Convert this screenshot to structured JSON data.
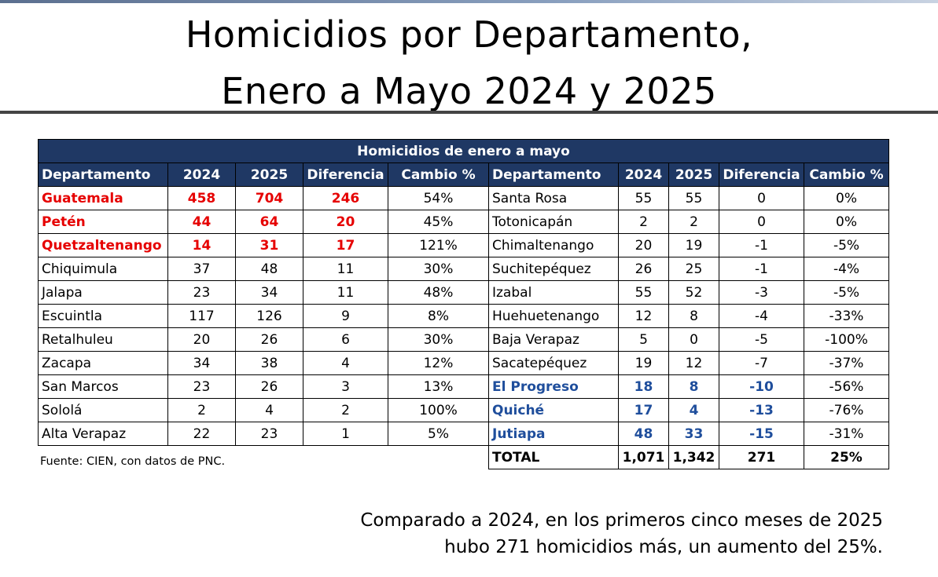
{
  "title": {
    "line1": "Homicidios por Departamento,",
    "line2": "Enero a Mayo 2024 y 2025"
  },
  "table": {
    "caption": "Homicidios de enero a mayo",
    "headers": [
      "Departamento",
      "2024",
      "2025",
      "Diferencia",
      "Cambio %"
    ],
    "left_rows": [
      {
        "dep": "Guatemala",
        "y2024": "458",
        "y2025": "704",
        "dif": "246",
        "cambio": "54%",
        "style": "red"
      },
      {
        "dep": "Petén",
        "y2024": "44",
        "y2025": "64",
        "dif": "20",
        "cambio": "45%",
        "style": "red"
      },
      {
        "dep": "Quetzaltenango",
        "y2024": "14",
        "y2025": "31",
        "dif": "17",
        "cambio": "121%",
        "style": "red"
      },
      {
        "dep": "Chiquimula",
        "y2024": "37",
        "y2025": "48",
        "dif": "11",
        "cambio": "30%",
        "style": ""
      },
      {
        "dep": "Jalapa",
        "y2024": "23",
        "y2025": "34",
        "dif": "11",
        "cambio": "48%",
        "style": ""
      },
      {
        "dep": "Escuintla",
        "y2024": "117",
        "y2025": "126",
        "dif": "9",
        "cambio": "8%",
        "style": ""
      },
      {
        "dep": "Retalhuleu",
        "y2024": "20",
        "y2025": "26",
        "dif": "6",
        "cambio": "30%",
        "style": ""
      },
      {
        "dep": "Zacapa",
        "y2024": "34",
        "y2025": "38",
        "dif": "4",
        "cambio": "12%",
        "style": ""
      },
      {
        "dep": "San Marcos",
        "y2024": "23",
        "y2025": "26",
        "dif": "3",
        "cambio": "13%",
        "style": ""
      },
      {
        "dep": "Sololá",
        "y2024": "2",
        "y2025": "4",
        "dif": "2",
        "cambio": "100%",
        "style": ""
      },
      {
        "dep": "Alta Verapaz",
        "y2024": "22",
        "y2025": "23",
        "dif": "1",
        "cambio": "5%",
        "style": ""
      }
    ],
    "right_rows": [
      {
        "dep": "Santa Rosa",
        "y2024": "55",
        "y2025": "55",
        "dif": "0",
        "cambio": "0%",
        "style": ""
      },
      {
        "dep": "Totonicapán",
        "y2024": "2",
        "y2025": "2",
        "dif": "0",
        "cambio": "0%",
        "style": ""
      },
      {
        "dep": "Chimaltenango",
        "y2024": "20",
        "y2025": "19",
        "dif": "-1",
        "cambio": "-5%",
        "style": ""
      },
      {
        "dep": "Suchitepéquez",
        "y2024": "26",
        "y2025": "25",
        "dif": "-1",
        "cambio": "-4%",
        "style": ""
      },
      {
        "dep": "Izabal",
        "y2024": "55",
        "y2025": "52",
        "dif": "-3",
        "cambio": "-5%",
        "style": ""
      },
      {
        "dep": "Huehuetenango",
        "y2024": "12",
        "y2025": "8",
        "dif": "-4",
        "cambio": "-33%",
        "style": ""
      },
      {
        "dep": "Baja Verapaz",
        "y2024": "5",
        "y2025": "0",
        "dif": "-5",
        "cambio": "-100%",
        "style": ""
      },
      {
        "dep": "Sacatepéquez",
        "y2024": "19",
        "y2025": "12",
        "dif": "-7",
        "cambio": "-37%",
        "style": ""
      },
      {
        "dep": "El Progreso",
        "y2024": "18",
        "y2025": "8",
        "dif": "-10",
        "cambio": "-56%",
        "style": "blue"
      },
      {
        "dep": "Quiché",
        "y2024": "17",
        "y2025": "4",
        "dif": "-13",
        "cambio": "-76%",
        "style": "blue"
      },
      {
        "dep": "Jutiapa",
        "y2024": "48",
        "y2025": "33",
        "dif": "-15",
        "cambio": "-31%",
        "style": "blue"
      }
    ],
    "total": {
      "dep": "TOTAL",
      "y2024": "1,071",
      "y2025": "1,342",
      "dif": "271",
      "cambio": "25%"
    }
  },
  "source": "Fuente: CIEN, con datos de PNC.",
  "footer": {
    "line1": "Comparado a 2024, en los primeros cinco meses de 2025",
    "line2": "hubo 271 homicidios más, un aumento del 25%."
  },
  "colors": {
    "header_bg": "#1f3864",
    "increase_highlight": "#e60000",
    "decrease_highlight": "#1f4e9c"
  }
}
